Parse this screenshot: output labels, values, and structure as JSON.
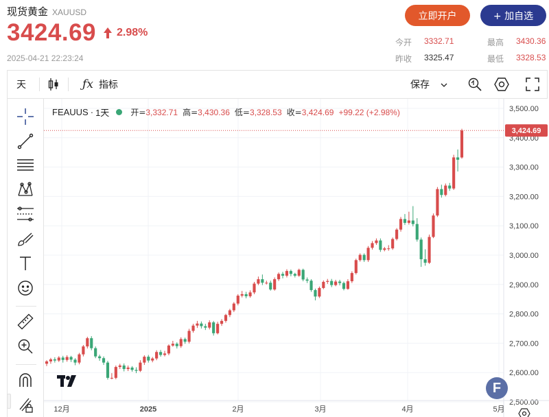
{
  "header": {
    "name": "现货黄金",
    "symbol": "XAUUSD",
    "price": "3424.69",
    "change_pct": "2.98%",
    "timestamp": "2025-04-21 22:23:24",
    "open_button": "立即开户",
    "watch_button": "+ 加自选",
    "stats": {
      "open_label": "今开",
      "open_value": "3332.71",
      "high_label": "最高",
      "high_value": "3430.36",
      "prev_label": "昨收",
      "prev_value": "3325.47",
      "low_label": "最低",
      "low_value": "3328.53"
    },
    "colors": {
      "up": "#d84c4c",
      "down": "#3aa676",
      "open_btn": "#e2582b",
      "watch_btn": "#2b3a90"
    }
  },
  "toolbar": {
    "interval": "天",
    "indicators": "指标",
    "save": "保存",
    "icons": [
      "candlestick-icon",
      "function-icon",
      "chevron-down-icon",
      "quick-search-icon",
      "settings-hexagon-icon",
      "fullscreen-icon"
    ]
  },
  "sidebar": {
    "icons": [
      "crosshair-icon",
      "trend-line-icon",
      "parallel-lines-icon",
      "pattern-icon",
      "fib-icon",
      "brush-icon",
      "text-icon",
      "emoji-icon",
      "ruler-icon",
      "zoom-icon",
      "magnet-icon",
      "lock-pencil-icon"
    ]
  },
  "chart_data": {
    "type": "candlestick",
    "symbol": "FEAUUS",
    "interval": "1天",
    "legend": {
      "open_label": "开=",
      "open": "3,332.71",
      "high_label": "高=",
      "high": "3,430.36",
      "low_label": "低=",
      "low": "3,328.53",
      "close_label": "收=",
      "close": "3,424.69",
      "change": "+99.22 (+2.98%)"
    },
    "last_price_label": "3,424.69",
    "y_ticks": [
      "3,500.00",
      "3,400.00",
      "3,300.00",
      "3,200.00",
      "3,100.00",
      "3,000.00",
      "2,900.00",
      "2,800.00",
      "2,700.00",
      "2,600.00",
      "2,500.00"
    ],
    "y_range": [
      2500,
      3500
    ],
    "x_ticks": [
      "12月",
      "2025",
      "2月",
      "3月",
      "4月",
      "5月"
    ],
    "grid": true,
    "candles": [
      [
        2630,
        2638,
        2622,
        2642
      ],
      [
        2638,
        2645,
        2630,
        2650
      ],
      [
        2645,
        2641,
        2634,
        2652
      ],
      [
        2641,
        2651,
        2636,
        2656
      ],
      [
        2651,
        2643,
        2634,
        2657
      ],
      [
        2643,
        2653,
        2637,
        2659
      ],
      [
        2653,
        2644,
        2636,
        2657
      ],
      [
        2644,
        2634,
        2625,
        2649
      ],
      [
        2634,
        2662,
        2628,
        2667
      ],
      [
        2662,
        2689,
        2655,
        2694
      ],
      [
        2689,
        2717,
        2682,
        2722
      ],
      [
        2717,
        2683,
        2676,
        2724
      ],
      [
        2683,
        2655,
        2649,
        2689
      ],
      [
        2655,
        2649,
        2640,
        2661
      ],
      [
        2649,
        2634,
        2626,
        2655
      ],
      [
        2634,
        2582,
        2576,
        2640
      ],
      [
        2582,
        2582,
        2577,
        2598
      ],
      [
        2582,
        2619,
        2577,
        2624
      ],
      [
        2619,
        2624,
        2612,
        2630
      ],
      [
        2624,
        2612,
        2604,
        2631
      ],
      [
        2612,
        2617,
        2605,
        2624
      ],
      [
        2617,
        2609,
        2603,
        2622
      ],
      [
        2609,
        2606,
        2598,
        2618
      ],
      [
        2606,
        2634,
        2602,
        2642
      ],
      [
        2634,
        2654,
        2626,
        2659
      ],
      [
        2654,
        2641,
        2634,
        2660
      ],
      [
        2641,
        2648,
        2635,
        2653
      ],
      [
        2648,
        2670,
        2642,
        2676
      ],
      [
        2670,
        2660,
        2654,
        2677
      ],
      [
        2660,
        2665,
        2655,
        2674
      ],
      [
        2665,
        2692,
        2659,
        2696
      ],
      [
        2692,
        2698,
        2688,
        2708
      ],
      [
        2698,
        2690,
        2682,
        2703
      ],
      [
        2690,
        2714,
        2684,
        2720
      ],
      [
        2714,
        2705,
        2698,
        2719
      ],
      [
        2705,
        2742,
        2699,
        2749
      ],
      [
        2742,
        2760,
        2736,
        2766
      ],
      [
        2760,
        2767,
        2752,
        2776
      ],
      [
        2767,
        2758,
        2750,
        2774
      ],
      [
        2758,
        2753,
        2745,
        2766
      ],
      [
        2753,
        2771,
        2747,
        2778
      ],
      [
        2771,
        2734,
        2726,
        2776
      ],
      [
        2734,
        2766,
        2730,
        2773
      ],
      [
        2766,
        2776,
        2759,
        2782
      ],
      [
        2776,
        2796,
        2770,
        2800
      ],
      [
        2796,
        2812,
        2789,
        2817
      ],
      [
        2812,
        2835,
        2806,
        2840
      ],
      [
        2835,
        2862,
        2829,
        2867
      ],
      [
        2862,
        2867,
        2856,
        2878
      ],
      [
        2867,
        2860,
        2853,
        2875
      ],
      [
        2860,
        2873,
        2855,
        2880
      ],
      [
        2873,
        2903,
        2867,
        2909
      ],
      [
        2903,
        2918,
        2898,
        2927
      ],
      [
        2918,
        2906,
        2898,
        2934
      ],
      [
        2906,
        2906,
        2900,
        2913
      ],
      [
        2906,
        2883,
        2879,
        2913
      ],
      [
        2883,
        2918,
        2879,
        2924
      ],
      [
        2918,
        2936,
        2912,
        2941
      ],
      [
        2936,
        2930,
        2921,
        2943
      ],
      [
        2930,
        2946,
        2924,
        2952
      ],
      [
        2946,
        2936,
        2928,
        2951
      ],
      [
        2936,
        2930,
        2924,
        2940
      ],
      [
        2930,
        2950,
        2926,
        2954
      ],
      [
        2950,
        2917,
        2911,
        2954
      ],
      [
        2917,
        2913,
        2905,
        2924
      ],
      [
        2913,
        2881,
        2875,
        2918
      ],
      [
        2881,
        2859,
        2846,
        2886
      ],
      [
        2859,
        2888,
        2854,
        2893
      ],
      [
        2888,
        2909,
        2884,
        2914
      ],
      [
        2909,
        2912,
        2902,
        2919
      ],
      [
        2912,
        2898,
        2891,
        2919
      ],
      [
        2898,
        2910,
        2894,
        2916
      ],
      [
        2910,
        2905,
        2897,
        2916
      ],
      [
        2905,
        2885,
        2880,
        2910
      ],
      [
        2885,
        2911,
        2882,
        2918
      ],
      [
        2911,
        2939,
        2905,
        2945
      ],
      [
        2939,
        2983,
        2934,
        2988
      ],
      [
        2983,
        3001,
        2978,
        3006
      ],
      [
        3001,
        2983,
        2977,
        3006
      ],
      [
        2983,
        3025,
        2977,
        3031
      ],
      [
        3025,
        3041,
        3019,
        3048
      ],
      [
        3041,
        3050,
        3035,
        3057
      ],
      [
        3050,
        3018,
        3011,
        3057
      ],
      [
        3018,
        3023,
        3013,
        3028
      ],
      [
        3023,
        3023,
        3015,
        3034
      ],
      [
        3023,
        3055,
        3018,
        3060
      ],
      [
        3055,
        3087,
        3050,
        3092
      ],
      [
        3087,
        3123,
        3080,
        3130
      ],
      [
        3123,
        3110,
        3103,
        3140
      ],
      [
        3110,
        3118,
        3104,
        3148
      ],
      [
        3118,
        3106,
        3098,
        3167
      ],
      [
        3106,
        3053,
        3046,
        3126
      ],
      [
        3053,
        2986,
        2960,
        3060
      ],
      [
        2986,
        2974,
        2964,
        3020
      ],
      [
        2974,
        3062,
        2970,
        3070
      ],
      [
        3062,
        3135,
        3058,
        3142
      ],
      [
        3135,
        3225,
        3130,
        3232
      ],
      [
        3225,
        3205,
        3196,
        3240
      ],
      [
        3205,
        3237,
        3200,
        3244
      ],
      [
        3237,
        3227,
        3219,
        3246
      ],
      [
        3227,
        3333,
        3222,
        3342
      ],
      [
        3333,
        3325,
        3285,
        3360
      ],
      [
        3332.71,
        3424.69,
        3328.53,
        3430.36
      ]
    ]
  }
}
